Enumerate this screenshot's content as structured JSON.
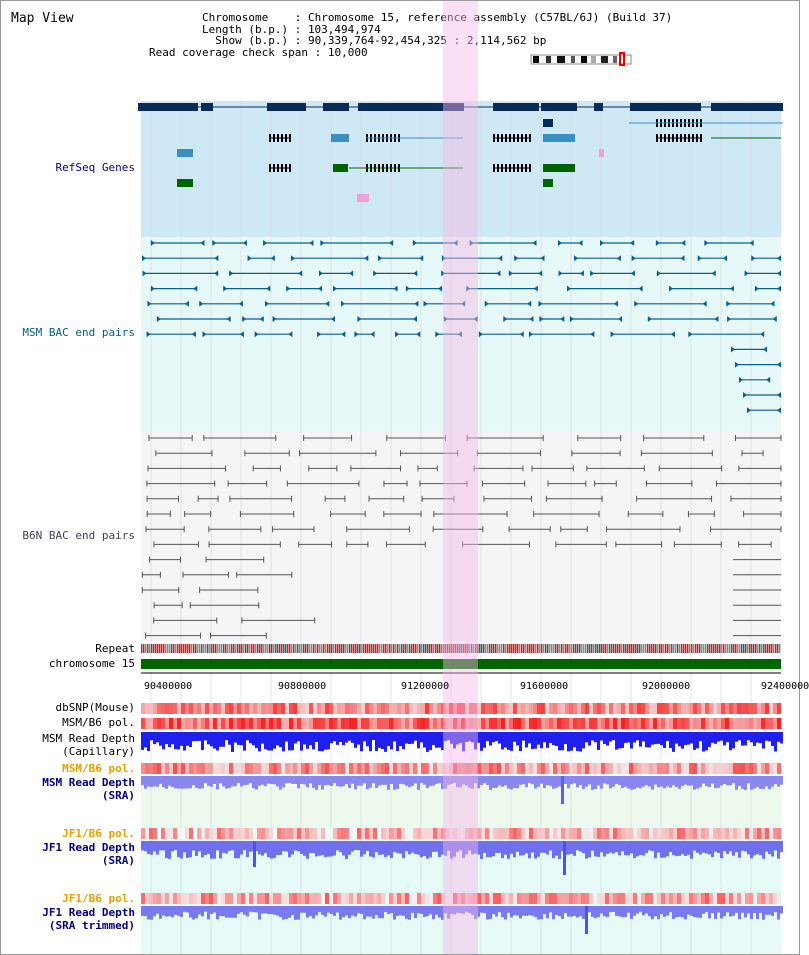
{
  "window": {
    "title": "Map View"
  },
  "info": {
    "chromosome_key": "Chromosome",
    "chromosome_value": "Chromosome 15, reference assembly (C57BL/6J) (Build 37)",
    "length_key": "Length (b.p.)",
    "length_value": "103,494,974",
    "show_key": "Show (b.p.)",
    "show_value": "90,339,764-92,454,325 : 2,114,562 bp",
    "span_key": "Read coverage check span",
    "span_value": "10,000"
  },
  "tracks": {
    "refseq": "RefSeq Genes",
    "msm_bac": "MSM BAC end pairs",
    "b6n_bac": "B6N BAC end pairs",
    "repeat": "Repeat",
    "chromosome": "chromosome 15",
    "dbsnp": "dbSNP(Mouse)",
    "msm_b6_pol_1": "MSM/B6 pol.",
    "msm_read_cap_1": "MSM Read Depth",
    "msm_read_cap_2": "(Capillary)",
    "msm_b6_pol_2": "MSM/B6 pol.",
    "msm_read_sra_1": "MSM Read Depth",
    "msm_read_sra_2": "(SRA)",
    "jf1_b6_pol_1": "JF1/B6 pol.",
    "jf1_read_sra_1": "JF1 Read Depth",
    "jf1_read_sra_2": "(SRA)",
    "jf1_b6_pol_2": "JF1/B6 pol.",
    "jf1_read_trim_1": "JF1 Read Depth",
    "jf1_read_trim_2": "(SRA trimmed)"
  },
  "axis": {
    "ticks": [
      "90400000",
      "90800000",
      "91200000",
      "91600000",
      "92000000",
      "92400000"
    ]
  },
  "colors": {
    "refseq_bg": "#cfe8f5",
    "msm_bg": "#e6f8f8",
    "b6n_bg": "#f5f5f7",
    "highlight": "#f8d6f0",
    "label_blue": "#000080",
    "label_teal": "#006080",
    "label_orange": "#e8a000",
    "label_gray": "#404060",
    "chromosome_green": "#006400"
  }
}
